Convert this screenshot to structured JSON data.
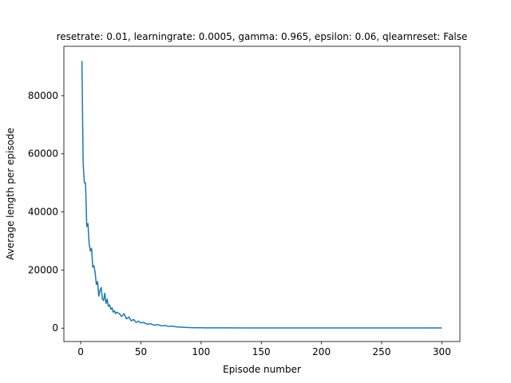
{
  "chart_data": {
    "type": "line",
    "title": "resetrate: 0.01, learningrate: 0.0005, gamma: 0.965, epsilon: 0.06, qlearnreset: False",
    "xlabel": "Episode number",
    "ylabel": "Average length per episode",
    "xlim": [
      -14,
      315
    ],
    "ylim": [
      -4600,
      97000
    ],
    "xticks": [
      0,
      50,
      100,
      150,
      200,
      250,
      300
    ],
    "yticks": [
      0,
      20000,
      40000,
      60000,
      80000
    ],
    "grid": false,
    "line_color": "#1f77b4",
    "x": [
      1,
      2,
      3,
      4,
      5,
      6,
      7,
      8,
      9,
      10,
      11,
      12,
      13,
      14,
      15,
      16,
      17,
      18,
      19,
      20,
      21,
      22,
      23,
      24,
      25,
      26,
      27,
      28,
      29,
      30,
      32,
      34,
      36,
      38,
      40,
      42,
      44,
      46,
      48,
      50,
      52,
      55,
      58,
      61,
      64,
      67,
      70,
      73,
      76,
      80,
      85,
      90,
      95,
      100,
      110,
      120,
      140,
      160,
      180,
      200,
      220,
      240,
      260,
      280,
      300
    ],
    "y": [
      92000,
      57000,
      50000,
      50000,
      35000,
      36000,
      29000,
      26500,
      27500,
      21000,
      21500,
      19000,
      15000,
      16000,
      11000,
      13000,
      14000,
      10000,
      9500,
      12000,
      8500,
      10000,
      7500,
      8000,
      6500,
      7000,
      5500,
      6000,
      5000,
      5500,
      5000,
      4000,
      5000,
      3200,
      3800,
      2500,
      3000,
      2000,
      2400,
      1800,
      2000,
      1400,
      1500,
      1000,
      1200,
      800,
      900,
      600,
      700,
      400,
      300,
      200,
      150,
      120,
      100,
      90,
      80,
      75,
      70,
      70,
      70,
      70,
      70,
      70,
      70
    ]
  }
}
